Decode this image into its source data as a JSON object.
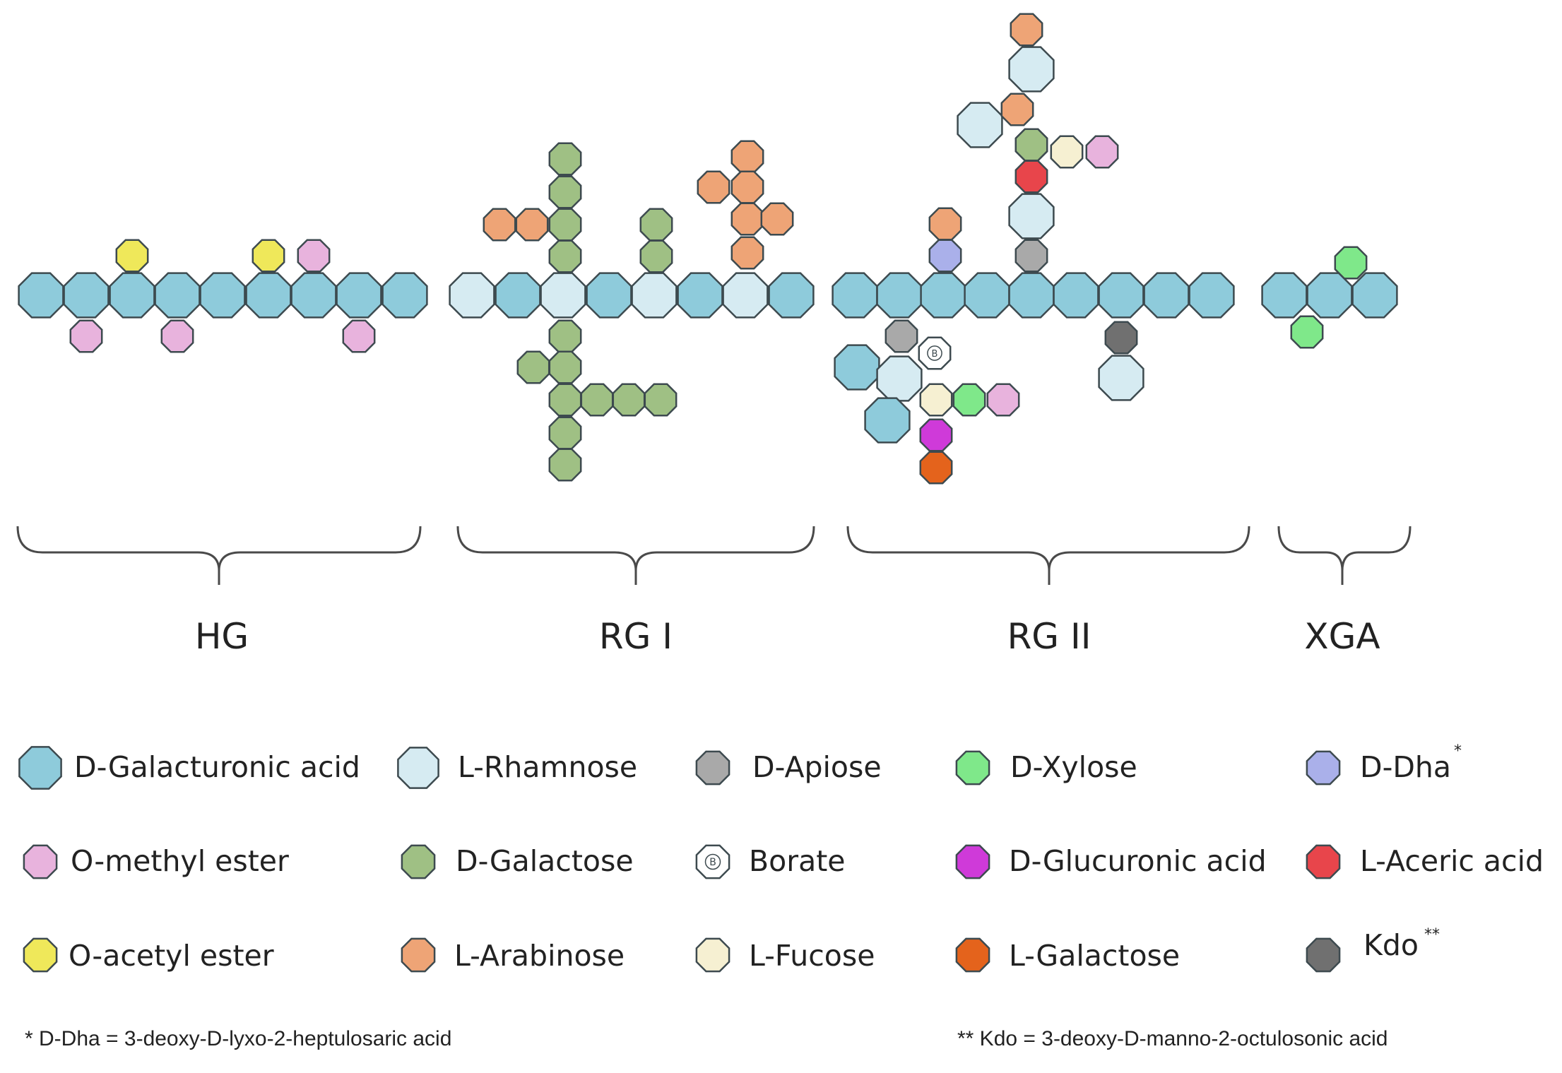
{
  "regions": [
    {
      "id": "hg",
      "label": "HG"
    },
    {
      "id": "rg1",
      "label": "RG I"
    },
    {
      "id": "rg2",
      "label": "RG II"
    },
    {
      "id": "xga",
      "label": "XGA"
    }
  ],
  "legend": [
    {
      "key": "galA",
      "label": "D-Galacturonic acid",
      "icon": "galacturonic-acid-octagon-icon",
      "color": "#8ecbdb"
    },
    {
      "key": "rha",
      "label": "L-Rhamnose",
      "icon": "rhamnose-octagon-icon",
      "color": "#d6ebf2"
    },
    {
      "key": "api",
      "label": "D-Apiose",
      "icon": "apiose-octagon-icon",
      "color": "#a9a9a9"
    },
    {
      "key": "xyl",
      "label": "D-Xylose",
      "icon": "xylose-octagon-icon",
      "color": "#7fe88a"
    },
    {
      "key": "dha",
      "label": "D-Dha",
      "icon": "dha-octagon-icon",
      "color": "#aab0ea",
      "superscript": "*"
    },
    {
      "key": "ome",
      "label": "O-methyl ester",
      "icon": "o-methyl-ester-octagon-icon",
      "color": "#e8b3dd"
    },
    {
      "key": "gal",
      "label": "D-Galactose",
      "icon": "galactose-octagon-icon",
      "color": "#9fc084"
    },
    {
      "key": "bor",
      "label": "Borate",
      "icon": "borate-octagon-icon",
      "color": "#ffffff",
      "glyph": "B"
    },
    {
      "key": "glcA",
      "label": "D-Glucuronic acid",
      "icon": "glucuronic-acid-octagon-icon",
      "color": "#cf3ad9"
    },
    {
      "key": "ace",
      "label": "L-Aceric acid",
      "icon": "aceric-acid-octagon-icon",
      "color": "#e8454b"
    },
    {
      "key": "oac",
      "label": "O-acetyl ester",
      "icon": "o-acetyl-ester-octagon-icon",
      "color": "#efe85a"
    },
    {
      "key": "ara",
      "label": "L-Arabinose",
      "icon": "arabinose-octagon-icon",
      "color": "#eea476"
    },
    {
      "key": "fuc",
      "label": "L-Fucose",
      "icon": "fucose-octagon-icon",
      "color": "#f6f0d2"
    },
    {
      "key": "lgal",
      "label": "L-Galactose",
      "icon": "l-galactose-octagon-icon",
      "color": "#e4631c"
    },
    {
      "key": "kdo",
      "label": "Kdo",
      "icon": "kdo-octagon-icon",
      "color": "#707070",
      "superscript": "**"
    }
  ],
  "footnotes": {
    "dha": "* D-Dha  = 3-deoxy-D-lyxo-2-heptulosaric  acid",
    "kdo": "** Kdo = 3-deoxy-D-manno-2-octulosonic  acid"
  },
  "colors": {
    "stroke": "#3d4a4f",
    "label": "#222222",
    "brace": "#4a4a4a"
  }
}
